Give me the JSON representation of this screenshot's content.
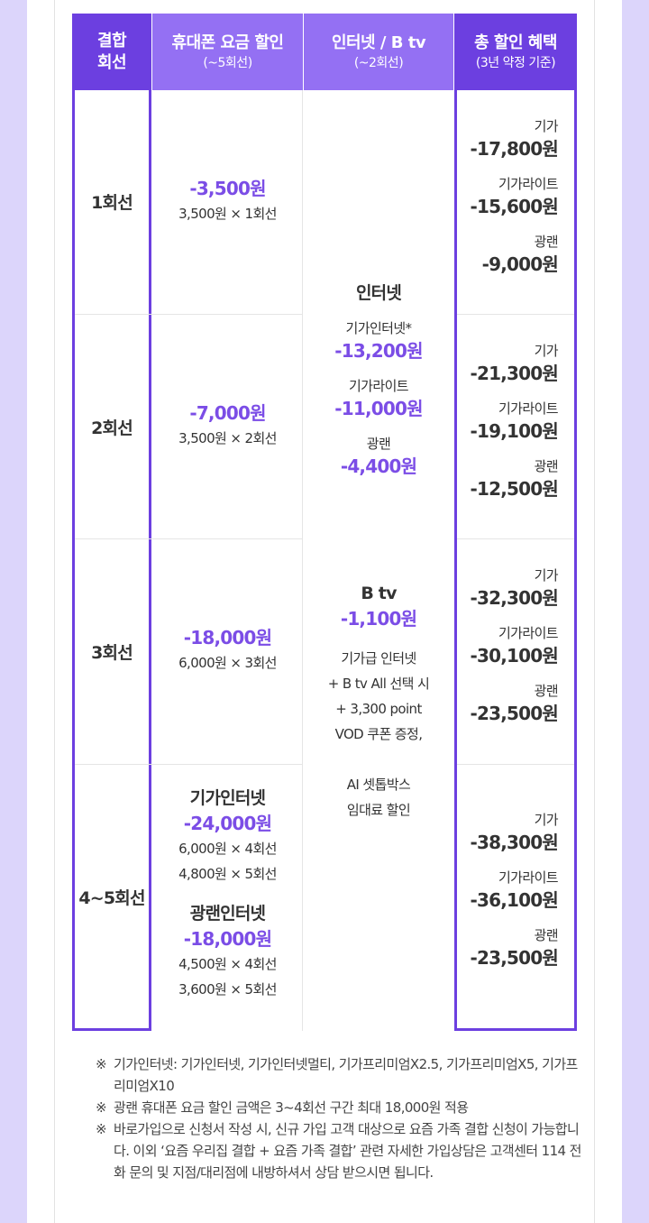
{
  "headers": [
    {
      "title": "결합\n회선",
      "sub": ""
    },
    {
      "title": "휴대폰 요금 할인",
      "sub": "(~5회선)"
    },
    {
      "title": "인터넷 / B tv",
      "sub": "(~2회선)"
    },
    {
      "title": "총 할인 혜택",
      "sub": "(3년 약정 기준)"
    }
  ],
  "rows": [
    {
      "round": "1회선",
      "discount": "-3,500원",
      "calc": "3,500원 × 1회선",
      "totals": [
        {
          "label": "기가",
          "value": "-17,800원"
        },
        {
          "label": "기가라이트",
          "value": "-15,600원"
        },
        {
          "label": "광랜",
          "value": "-9,000원"
        }
      ]
    },
    {
      "round": "2회선",
      "discount": "-7,000원",
      "calc": "3,500원 × 2회선",
      "totals": [
        {
          "label": "기가",
          "value": "-21,300원"
        },
        {
          "label": "기가라이트",
          "value": "-19,100원"
        },
        {
          "label": "광랜",
          "value": "-12,500원"
        }
      ]
    },
    {
      "round": "3회선",
      "discount": "-18,000원",
      "calc": "6,000원 × 3회선",
      "totals": [
        {
          "label": "기가",
          "value": "-32,300원"
        },
        {
          "label": "기가라이트",
          "value": "-30,100원"
        },
        {
          "label": "광랜",
          "value": "-23,500원"
        }
      ]
    },
    {
      "round": "4~5회선",
      "plans": [
        {
          "title": "기가인터넷",
          "discount": "-24,000원",
          "calc1": "6,000원 × 4회선",
          "calc2": "4,800원 × 5회선"
        },
        {
          "title": "광랜인터넷",
          "discount": "-18,000원",
          "calc1": "4,500원 × 4회선",
          "calc2": "3,600원 × 5회선"
        }
      ],
      "totals": [
        {
          "label": "기가",
          "value": "-38,300원"
        },
        {
          "label": "기가라이트",
          "value": "-36,100원"
        },
        {
          "label": "광랜",
          "value": "-23,500원"
        }
      ]
    }
  ],
  "internet": {
    "title": "인터넷",
    "items": [
      {
        "label": "기가인터넷*",
        "value": "-13,200원"
      },
      {
        "label": "기가라이트",
        "value": "-11,000원"
      },
      {
        "label": "광랜",
        "value": "-4,400원"
      }
    ]
  },
  "btv": {
    "title": "B tv",
    "value": "-1,100원",
    "desc": [
      "기가급 인터넷",
      "+ B tv All 선택 시",
      "+ 3,300 point",
      "VOD 쿠폰 증정,"
    ],
    "desc2": [
      "AI 셋톱박스",
      "임대료 할인"
    ]
  },
  "notes": [
    {
      "mark": "※",
      "text": "기가인터넷: 기가인터넷, 기가인터넷멀티, 기가프리미엄X2.5, 기가프리미엄X5, 기가프리미엄X10"
    },
    {
      "mark": "※",
      "text": "광랜 휴대폰 요금 할인 금액은 3~4회선 구간 최대 18,000원 적용"
    },
    {
      "mark": "※",
      "text": "바로가입으로 신청서 작성 시, 신규 가입 고객 대상으로 요즘 가족 결합 신청이 가능합니다. 이외 ‘요즘 우리집 결합 + 요즘 가족 결합’ 관련 자세한 가입상담은 고객센터 114 전화 문의 및 지점/대리점에 내방하셔서 상담 받으시면 됩니다."
    }
  ]
}
